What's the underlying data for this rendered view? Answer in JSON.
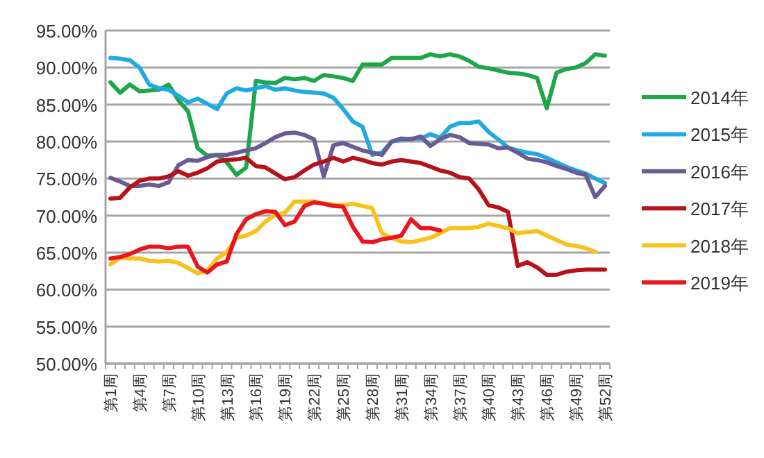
{
  "chart_data": {
    "type": "line",
    "categories": [
      "第1周",
      null,
      null,
      "第4周",
      null,
      null,
      "第7周",
      null,
      null,
      "第10周",
      null,
      null,
      "第13周",
      null,
      null,
      "第16周",
      null,
      null,
      "第19周",
      null,
      null,
      "第22周",
      null,
      null,
      "第25周",
      null,
      null,
      "第28周",
      null,
      null,
      "第31周",
      null,
      null,
      "第34周",
      null,
      null,
      "第37周",
      null,
      null,
      "第40周",
      null,
      null,
      "第43周",
      null,
      null,
      "第46周",
      null,
      null,
      "第49周",
      null,
      null,
      "第52周"
    ],
    "series": [
      {
        "name": "2014年",
        "color": "#1fa64a",
        "values": [
          88,
          86.6,
          87.7,
          86.8,
          86.9,
          87,
          87.7,
          85.6,
          84.1,
          79.1,
          78.1,
          78.2,
          77.2,
          75.5,
          76.5,
          88.2,
          88,
          87.9,
          88.6,
          88.4,
          88.6,
          88.2,
          89,
          88.8,
          88.6,
          88.2,
          90.4,
          90.4,
          90.4,
          91.3,
          91.3,
          91.3,
          91.3,
          91.8,
          91.5,
          91.8,
          91.5,
          90.9,
          90.1,
          89.9,
          89.6,
          89.3,
          89.2,
          89,
          88.6,
          84.5,
          89.3,
          89.8,
          90,
          90.6,
          91.8,
          91.6
        ]
      },
      {
        "name": "2015年",
        "color": "#21a9e1",
        "values": [
          91.3,
          91.2,
          91,
          90,
          87.7,
          87.2,
          87,
          86.2,
          85.3,
          85.8,
          85.1,
          84.4,
          86.5,
          87.2,
          86.9,
          87.2,
          87.5,
          87,
          87.2,
          86.9,
          86.7,
          86.6,
          86.5,
          85.9,
          84.4,
          82.7,
          82,
          78.2,
          78.5,
          80,
          80.2,
          80.4,
          80.4,
          81,
          80.5,
          82,
          82.5,
          82.5,
          82.7,
          81.3,
          80.3,
          79.2,
          78.8,
          78.5,
          78.3,
          77.8,
          77.2,
          76.6,
          76.1,
          75.7,
          75,
          74.4
        ]
      },
      {
        "name": "2016年",
        "color": "#6b5b95",
        "values": [
          75.1,
          74.6,
          74,
          74,
          74.2,
          74,
          74.5,
          76.8,
          77.5,
          77.4,
          77.9,
          78.2,
          78.2,
          78.5,
          78.8,
          79.1,
          79.8,
          80.6,
          81.1,
          81.2,
          80.9,
          80.3,
          75.3,
          79.5,
          79.8,
          79.3,
          78.8,
          78.5,
          78.2,
          80,
          80.4,
          80.3,
          80.7,
          79.4,
          80.3,
          80.9,
          80.6,
          79.8,
          79.7,
          79.6,
          79.1,
          79.2,
          78.5,
          77.7,
          77.5,
          77.2,
          76.7,
          76.3,
          75.8,
          75.5,
          72.5,
          74
        ]
      },
      {
        "name": "2017年",
        "color": "#b5121b",
        "values": [
          72.3,
          72.4,
          73.8,
          74.7,
          75,
          75,
          75.3,
          76,
          75.4,
          75.8,
          76.4,
          77.3,
          77.5,
          77.6,
          77.8,
          76.7,
          76.5,
          75.7,
          74.9,
          75.2,
          76.1,
          76.9,
          77.3,
          77.8,
          77.3,
          77.8,
          77.5,
          77.1,
          76.9,
          77.3,
          77.5,
          77.3,
          77.1,
          76.6,
          76.1,
          75.8,
          75.2,
          75,
          73.5,
          71.4,
          71.1,
          70.5,
          63.2,
          63.7,
          63,
          62,
          62,
          62.4,
          62.6,
          62.7,
          62.7,
          62.7
        ]
      },
      {
        "name": "2018年",
        "color": "#f7c21b",
        "values": [
          63.4,
          64.3,
          64.2,
          64.2,
          63.9,
          63.8,
          63.9,
          63.6,
          62.9,
          62.2,
          62.6,
          64.2,
          65.1,
          67,
          67.3,
          67.9,
          69.2,
          70.1,
          70.4,
          71.9,
          71.9,
          71.9,
          71.6,
          71.5,
          71.4,
          71.6,
          71.3,
          71,
          67.6,
          67,
          66.5,
          66.4,
          66.7,
          67,
          67.6,
          68.3,
          68.3,
          68.3,
          68.5,
          68.9,
          68.6,
          68.3,
          67.6,
          67.8,
          67.9,
          67.3,
          66.7,
          66.1,
          65.9,
          65.6,
          65.1,
          null
        ]
      },
      {
        "name": "2019年",
        "color": "#e8161d",
        "values": [
          64.2,
          64.4,
          64.8,
          65.4,
          65.8,
          65.8,
          65.6,
          65.8,
          65.8,
          63.1,
          62.3,
          63.4,
          63.8,
          67.5,
          69.5,
          70.2,
          70.6,
          70.5,
          68.7,
          69.2,
          71.3,
          71.8,
          71.6,
          71.3,
          71.2,
          68.5,
          66.5,
          66.4,
          66.8,
          67,
          67.3,
          69.5,
          68.3,
          68.3,
          68,
          null,
          null,
          null,
          null,
          null,
          null,
          null,
          null,
          null,
          null,
          null,
          null,
          null,
          null,
          null,
          null,
          null
        ]
      }
    ],
    "ylim": [
      50,
      95
    ],
    "yticks": [
      {
        "value": 50,
        "label": "50.00%"
      },
      {
        "value": 55,
        "label": "55.00%"
      },
      {
        "value": 60,
        "label": "60.00%"
      },
      {
        "value": 65,
        "label": "65.00%"
      },
      {
        "value": 70,
        "label": "70.00%"
      },
      {
        "value": 75,
        "label": "75.00%"
      },
      {
        "value": 80,
        "label": "80.00%"
      },
      {
        "value": 85,
        "label": "85.00%"
      },
      {
        "value": 90,
        "label": "90.00%"
      },
      {
        "value": 95,
        "label": "95.00%"
      }
    ],
    "grid": "y",
    "legend": "right",
    "line_style": "solid",
    "marker": "none"
  }
}
